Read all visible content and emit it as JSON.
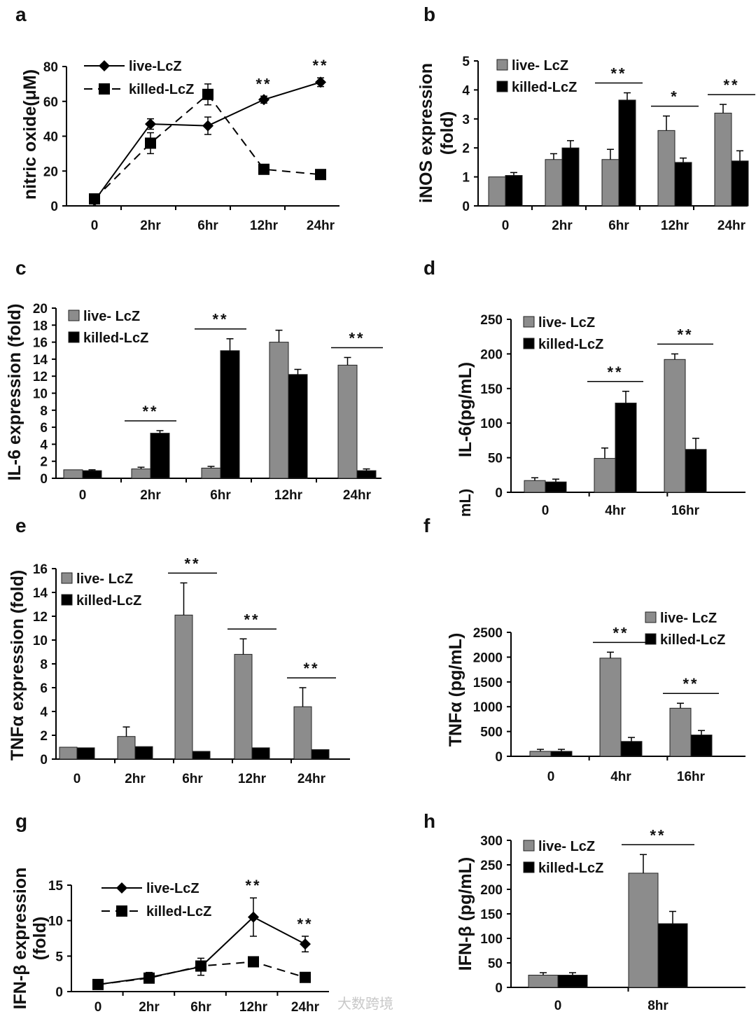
{
  "watermark": "大数跨境",
  "stray_label": "mL)",
  "chart_data": [
    {
      "panel": "a",
      "type": "line",
      "ylabel": [
        "nitric oxide(μM)"
      ],
      "categories": [
        "0",
        "2hr",
        "6hr",
        "12hr",
        "24hr"
      ],
      "ylim": [
        0,
        80
      ],
      "yticks": [
        0,
        20,
        40,
        60,
        80
      ],
      "series": [
        {
          "name": "live-LcZ",
          "marker": "diamond",
          "dash": false,
          "values": [
            3,
            47,
            46,
            61,
            71
          ],
          "errors": [
            0,
            3,
            5,
            2,
            2.5
          ]
        },
        {
          "name": "killed-LcZ",
          "marker": "square",
          "dash": true,
          "values": [
            4,
            36,
            64,
            21,
            18
          ],
          "errors": [
            0,
            6,
            6,
            1,
            1
          ]
        }
      ],
      "significance": [
        "",
        "",
        "",
        "**",
        "**"
      ]
    },
    {
      "panel": "b",
      "type": "bar",
      "ylabel": [
        "iNOS expression",
        "(fold)"
      ],
      "categories": [
        "0",
        "2hr",
        "6hr",
        "12hr",
        "24hr"
      ],
      "ylim": [
        0,
        5
      ],
      "yticks": [
        0,
        1,
        2,
        3,
        4,
        5
      ],
      "series": [
        {
          "name": "live- LcZ",
          "color": "#8c8c8c",
          "values": [
            1,
            1.6,
            1.6,
            2.6,
            3.2
          ],
          "errors": [
            0,
            0.2,
            0.35,
            0.5,
            0.3
          ]
        },
        {
          "name": "killed-LcZ",
          "color": "#000000",
          "values": [
            1.05,
            2.0,
            3.65,
            1.5,
            1.55
          ],
          "errors": [
            0.1,
            0.25,
            0.25,
            0.15,
            0.35
          ]
        }
      ],
      "significance": [
        "",
        "",
        "**",
        "*",
        "**"
      ]
    },
    {
      "panel": "c",
      "type": "bar",
      "ylabel": [
        "IL-6 expression (fold)"
      ],
      "categories": [
        "0",
        "2hr",
        "6hr",
        "12hr",
        "24hr"
      ],
      "ylim": [
        0,
        20
      ],
      "yticks": [
        0,
        2,
        4,
        6,
        8,
        10,
        12,
        14,
        16,
        18,
        20
      ],
      "series": [
        {
          "name": "live- LcZ",
          "color": "#8c8c8c",
          "values": [
            1,
            1.1,
            1.2,
            16,
            13.3
          ],
          "errors": [
            0,
            0.2,
            0.2,
            1.4,
            0.9
          ]
        },
        {
          "name": "killed-LcZ",
          "color": "#000000",
          "values": [
            0.9,
            5.3,
            15,
            12.2,
            0.9
          ],
          "errors": [
            0.1,
            0.3,
            1.4,
            0.6,
            0.2
          ]
        }
      ],
      "significance": [
        "",
        "**",
        "**",
        "",
        "**"
      ]
    },
    {
      "panel": "d",
      "type": "bar",
      "ylabel": [
        "IL-6(pg/mL)"
      ],
      "categories": [
        "0",
        "4hr",
        "16hr"
      ],
      "ylim": [
        0,
        250
      ],
      "yticks": [
        0,
        50,
        100,
        150,
        200,
        250
      ],
      "series": [
        {
          "name": "live- LcZ",
          "color": "#8c8c8c",
          "values": [
            17,
            49,
            192
          ],
          "errors": [
            4,
            15,
            8
          ]
        },
        {
          "name": "killed-LcZ",
          "color": "#000000",
          "values": [
            15,
            129,
            62
          ],
          "errors": [
            4,
            17,
            16
          ]
        }
      ],
      "significance": [
        "",
        "**",
        "**"
      ]
    },
    {
      "panel": "e",
      "type": "bar",
      "ylabel": [
        "TNFα expression (fold)"
      ],
      "categories": [
        "0",
        "2hr",
        "6hr",
        "12hr",
        "24hr"
      ],
      "ylim": [
        0,
        16
      ],
      "yticks": [
        0,
        2,
        4,
        6,
        8,
        10,
        12,
        14,
        16
      ],
      "series": [
        {
          "name": "live- LcZ",
          "color": "#8c8c8c",
          "values": [
            1,
            1.9,
            12.1,
            8.8,
            4.4
          ],
          "errors": [
            0,
            0.8,
            2.7,
            1.3,
            1.6
          ]
        },
        {
          "name": "killed-LcZ",
          "color": "#000000",
          "values": [
            0.95,
            1.05,
            0.65,
            0.95,
            0.8
          ],
          "errors": [
            0,
            0,
            0,
            0,
            0
          ]
        }
      ],
      "significance": [
        "",
        "",
        "**",
        "**",
        "**"
      ]
    },
    {
      "panel": "f",
      "type": "bar",
      "ylabel": [
        "TNFα (pg/mL)"
      ],
      "categories": [
        "0",
        "4hr",
        "16hr"
      ],
      "ylim": [
        0,
        2500
      ],
      "yticks": [
        0,
        500,
        1000,
        1500,
        2000,
        2500
      ],
      "series": [
        {
          "name": "live- LcZ",
          "color": "#8c8c8c",
          "values": [
            100,
            1980,
            970
          ],
          "errors": [
            40,
            120,
            100
          ]
        },
        {
          "name": "killed-LcZ",
          "color": "#000000",
          "values": [
            100,
            300,
            430
          ],
          "errors": [
            40,
            80,
            90
          ]
        }
      ],
      "significance": [
        "",
        "**",
        "**"
      ]
    },
    {
      "panel": "g",
      "type": "line",
      "ylabel": [
        "IFN-β expression",
        "(fold)"
      ],
      "categories": [
        "0",
        "2hr",
        "6hr",
        "12hr",
        "24hr"
      ],
      "ylim": [
        0,
        15
      ],
      "yticks": [
        0,
        5,
        10,
        15
      ],
      "series": [
        {
          "name": "live-LcZ",
          "marker": "diamond",
          "dash": false,
          "values": [
            1,
            2,
            3.5,
            10.5,
            6.7
          ],
          "errors": [
            0,
            0.7,
            1.2,
            2.7,
            1.1
          ]
        },
        {
          "name": "killed-LcZ",
          "marker": "square",
          "dash": true,
          "values": [
            1,
            1.9,
            3.6,
            4.2,
            2.0
          ],
          "errors": [
            0,
            0,
            0,
            0,
            0
          ]
        }
      ],
      "significance": [
        "",
        "",
        "",
        "**",
        "**"
      ]
    },
    {
      "panel": "h",
      "type": "bar",
      "ylabel": [
        "IFN-β (pg/mL)"
      ],
      "categories": [
        "0",
        "8hr"
      ],
      "ylim": [
        0,
        300
      ],
      "yticks": [
        0,
        50,
        100,
        150,
        200,
        250,
        300
      ],
      "series": [
        {
          "name": "live- LcZ",
          "color": "#8c8c8c",
          "values": [
            25,
            233
          ],
          "errors": [
            5,
            38
          ]
        },
        {
          "name": "killed-LcZ",
          "color": "#000000",
          "values": [
            25,
            130
          ],
          "errors": [
            5,
            25
          ]
        }
      ],
      "significance": [
        "",
        "**"
      ]
    }
  ]
}
